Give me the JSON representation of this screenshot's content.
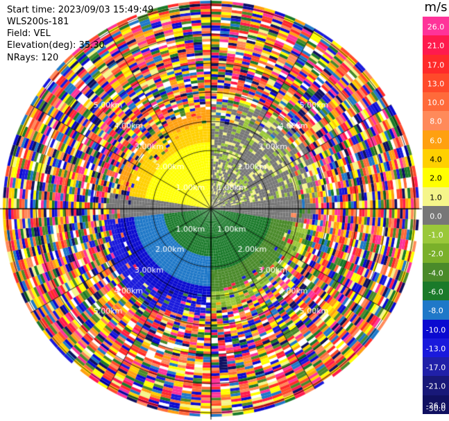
{
  "header": {
    "start_time": "Start time: 2023/09/03 15:49:49",
    "instrument": "WLS200s-181",
    "field": "Field: VEL",
    "elevation": "Elevation(deg): 35.30",
    "nrays": "NRays: 120"
  },
  "colorbar": {
    "unit": "m/s",
    "ticks": [
      "26.0",
      "21.0",
      "17.0",
      "13.0",
      "10.0",
      "8.0",
      "6.0",
      "4.0",
      "2.0",
      "1.0",
      "0.0",
      "-1.0",
      "-2.0",
      "-4.0",
      "-6.0",
      "-8.0",
      "-10.0",
      "-13.0",
      "-17.0",
      "-21.0",
      "-26.0",
      "-30.0"
    ],
    "colors": [
      "#ff3399",
      "#ff1a4d",
      "#ff2a2a",
      "#ff4a2a",
      "#ff6a3a",
      "#ff8a5a",
      "#ffa010",
      "#ffd000",
      "#ffff00",
      "#f5f58a",
      "#777777",
      "#9ac83a",
      "#7ab02a",
      "#4a8a2a",
      "#1a7a2a",
      "#1f78c8",
      "#0a0ad0",
      "#1a1adc",
      "#2020a8",
      "#181878",
      "#101060"
    ]
  },
  "range_rings": {
    "labels": [
      "1.00km",
      "2.00km",
      "3.00km",
      "4.00km",
      "5.00km"
    ]
  },
  "chart_data": {
    "type": "heatmap",
    "field": "VEL",
    "units": "m/s",
    "elevation_deg": 35.3,
    "n_rays": 120,
    "range_rings_km": [
      1,
      2,
      3,
      4,
      5
    ],
    "value_range": [
      -30.0,
      26.0
    ]
  }
}
